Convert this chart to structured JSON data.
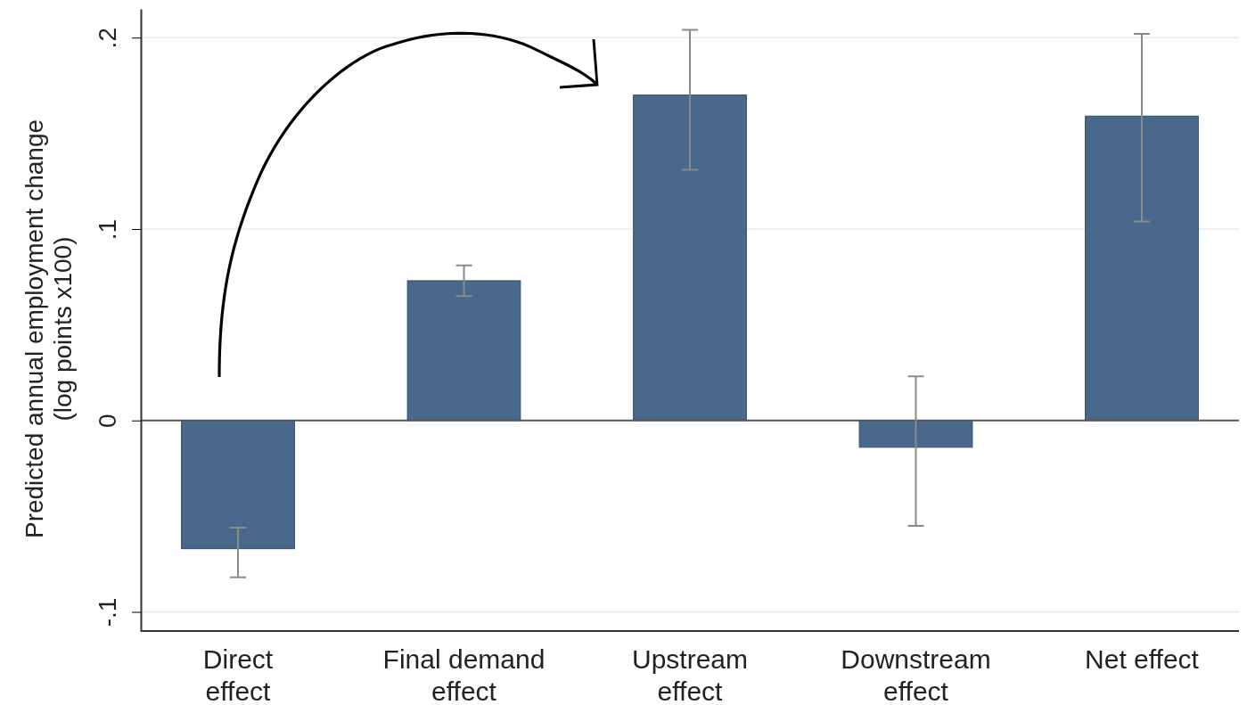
{
  "chart_data": {
    "type": "bar",
    "categories": [
      "Direct\neffect",
      "Final demand\neffect",
      "Upstream\neffect",
      "Downstream\neffect",
      "Net effect"
    ],
    "values": [
      -0.067,
      0.073,
      0.17,
      -0.014,
      0.159
    ],
    "errors": [
      [
        -0.082,
        -0.056
      ],
      [
        0.065,
        0.081
      ],
      [
        0.131,
        0.204
      ],
      [
        -0.055,
        0.023
      ],
      [
        0.104,
        0.202
      ]
    ],
    "color": "#48698b",
    "ylabel": "Predicted annual employment change\n(log points x100)",
    "ylim": [
      -0.11,
      0.215
    ],
    "yticks": [
      {
        "value": -0.1,
        "label": "-.1"
      },
      {
        "value": 0,
        "label": "0"
      },
      {
        "value": 0.1,
        "label": ".1"
      },
      {
        "value": 0.2,
        "label": ".2"
      }
    ],
    "grid": "y",
    "ref_lines": [
      {
        "axis": "y",
        "value": 0,
        "color": "#555555"
      }
    ]
  }
}
